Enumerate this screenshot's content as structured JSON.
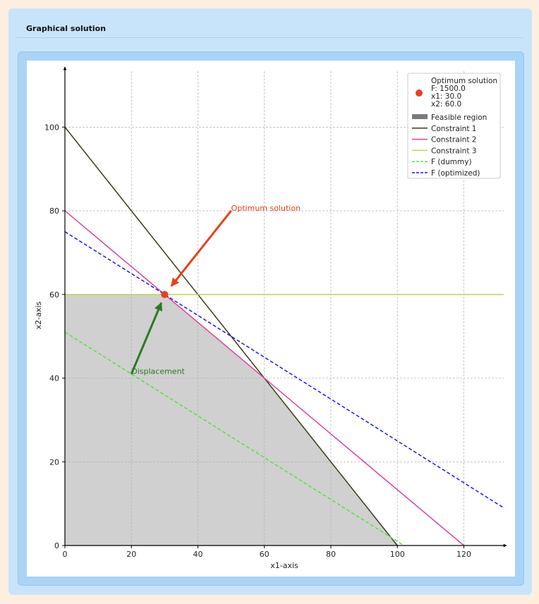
{
  "card": {
    "title": "Graphical solution"
  },
  "colors": {
    "optimum": "#e8401c",
    "feasible_fill": "#d0d0d0",
    "feasible_legend": "#7a7a7a",
    "constraint1": "#3a3a18",
    "constraint2": "#d9449a",
    "constraint3": "#b8d84a",
    "dummy": "#55e43a",
    "optimized": "#1a1ae6",
    "displacement": "#2a7a22",
    "grid": "#b0b0b0"
  },
  "chart_data": {
    "type": "line",
    "xlabel": "x1-axis",
    "ylabel": "x2-axis",
    "xlim": [
      0,
      132
    ],
    "ylim": [
      0,
      110
    ],
    "xticks": [
      0,
      20,
      40,
      60,
      80,
      100,
      120
    ],
    "yticks": [
      0,
      20,
      40,
      60,
      80,
      100
    ],
    "grid": true,
    "legend_position": "top-right",
    "feasible_region": {
      "name": "Feasible region",
      "polygon": [
        [
          0,
          0
        ],
        [
          0,
          60
        ],
        [
          30,
          60
        ],
        [
          60,
          40
        ],
        [
          100,
          0
        ]
      ]
    },
    "series": [
      {
        "name": "Constraint 1",
        "style": "solid",
        "x": [
          0,
          100
        ],
        "y": [
          100,
          0
        ]
      },
      {
        "name": "Constraint 2",
        "style": "solid",
        "x": [
          0,
          120
        ],
        "y": [
          80,
          0
        ]
      },
      {
        "name": "Constraint 3",
        "style": "solid",
        "x": [
          0,
          132
        ],
        "y": [
          60,
          60
        ]
      },
      {
        "name": "F (dummy)",
        "style": "dashed",
        "x": [
          0,
          102
        ],
        "y": [
          51,
          0
        ]
      },
      {
        "name": "F (optimized)",
        "style": "dashed",
        "x": [
          0,
          132
        ],
        "y": [
          75,
          9
        ]
      }
    ],
    "optimum": {
      "legend_title": "Optimum solution",
      "legend_lines": [
        "F: 1500.0",
        "x1: 30.0",
        "x2: 60.0"
      ],
      "x": 30,
      "y": 60
    },
    "annotations": [
      {
        "text": "Optimum solution",
        "text_x": 50,
        "text_y": 80,
        "arrow_to": [
          32,
          62
        ]
      },
      {
        "text": "Displacement",
        "text_x": 20,
        "text_y": 41,
        "arrow_to": [
          29,
          58
        ]
      }
    ]
  }
}
